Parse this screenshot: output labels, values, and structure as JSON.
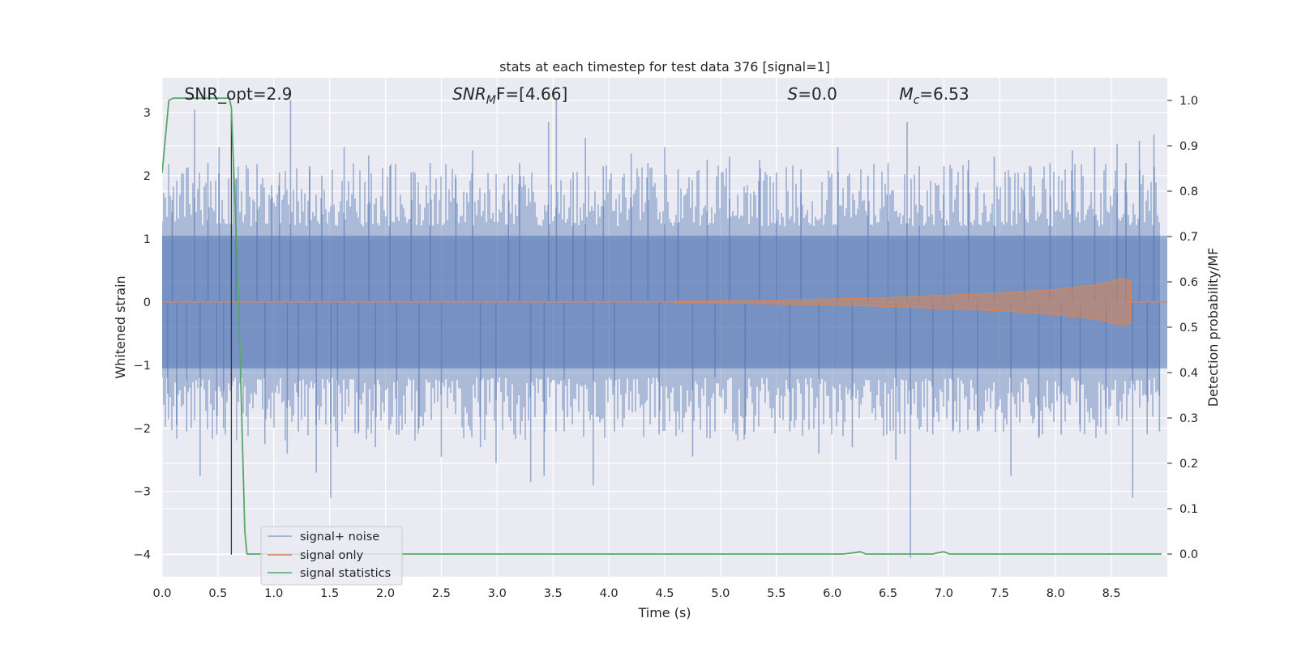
{
  "chart_data": {
    "type": "line",
    "title": "stats at each timestep for test data 376 [signal=1]",
    "xlabel": "Time (s)",
    "ylabel": "Whitened strain",
    "y2label": "Detection probability/MF",
    "xlim": [
      0.0,
      9.0
    ],
    "ylim": [
      -4.35,
      3.55
    ],
    "y2lim": [
      -0.05,
      1.05
    ],
    "xticks": [
      0.0,
      0.5,
      1.0,
      1.5,
      2.0,
      2.5,
      3.0,
      3.5,
      4.0,
      4.5,
      5.0,
      5.5,
      6.0,
      6.5,
      7.0,
      7.5,
      8.0,
      8.5
    ],
    "xtick_labels": [
      "0.0",
      "0.5",
      "1.0",
      "1.5",
      "2.0",
      "2.5",
      "3.0",
      "3.5",
      "4.0",
      "4.5",
      "5.0",
      "5.5",
      "6.0",
      "6.5",
      "7.0",
      "7.5",
      "8.0",
      "8.5"
    ],
    "yticks": [
      3,
      2,
      1,
      0,
      -1,
      -2,
      -3,
      -4
    ],
    "ytick_labels": [
      "3",
      "2",
      "1",
      "0",
      "−1",
      "−2",
      "−3",
      "−4"
    ],
    "y2ticks": [
      1.0,
      0.9,
      0.8,
      0.7,
      0.6,
      0.5,
      0.4,
      0.3,
      0.2,
      0.1,
      0.0
    ],
    "y2tick_labels": [
      "1.0",
      "0.9",
      "0.8",
      "0.7",
      "0.6",
      "0.5",
      "0.4",
      "0.3",
      "0.2",
      "0.1",
      "0.0"
    ],
    "grid": true,
    "legend_position": "lower-left",
    "annotations": {
      "snr_opt": {
        "prefix": "SNR_opt=",
        "value": "2.9",
        "x": 0.2
      },
      "snr_mf": {
        "name": "SNR",
        "sub": "M",
        "suffix": "F=",
        "value": "[4.66]",
        "x": 2.6
      },
      "s": {
        "name": "S",
        "suffix": "=0.0",
        "x": 5.6
      },
      "mc": {
        "name": "M",
        "sub": "c",
        "suffix": "=6.53",
        "x": 6.6
      }
    },
    "marker_line": {
      "x": 0.62,
      "y_from": -4.0,
      "y_to": 3.0
    },
    "series": [
      {
        "name": "signal+ noise",
        "color": "#4c72b0",
        "kind": "noise",
        "core_low": -1.05,
        "core_high": 1.05,
        "spikes": [
          {
            "x": 0.05,
            "y": -1.45
          },
          {
            "x": 0.09,
            "y": 1.62
          },
          {
            "x": 0.13,
            "y": -1.95
          },
          {
            "x": 0.22,
            "y": -2.05
          },
          {
            "x": 0.29,
            "y": 3.05
          },
          {
            "x": 0.34,
            "y": -2.75
          },
          {
            "x": 0.41,
            "y": 2.2
          },
          {
            "x": 0.49,
            "y": -2.1
          },
          {
            "x": 0.51,
            "y": 2.45
          },
          {
            "x": 0.55,
            "y": -2.0
          },
          {
            "x": 0.66,
            "y": 1.95
          },
          {
            "x": 0.85,
            "y": 2.18
          },
          {
            "x": 0.92,
            "y": -2.25
          },
          {
            "x": 0.98,
            "y": 1.85
          },
          {
            "x": 1.05,
            "y": 2.05
          },
          {
            "x": 1.12,
            "y": -2.4
          },
          {
            "x": 1.15,
            "y": 3.2
          },
          {
            "x": 1.22,
            "y": -2.05
          },
          {
            "x": 1.32,
            "y": 2.15
          },
          {
            "x": 1.38,
            "y": -2.7
          },
          {
            "x": 1.43,
            "y": 2.0
          },
          {
            "x": 1.51,
            "y": -3.1
          },
          {
            "x": 1.57,
            "y": -2.3
          },
          {
            "x": 1.63,
            "y": 2.45
          },
          {
            "x": 1.76,
            "y": -2.05
          },
          {
            "x": 1.85,
            "y": 2.32
          },
          {
            "x": 1.91,
            "y": -2.3
          },
          {
            "x": 2.04,
            "y": 2.15
          },
          {
            "x": 2.1,
            "y": -2.1
          },
          {
            "x": 2.23,
            "y": 2.05
          },
          {
            "x": 2.3,
            "y": -2.0
          },
          {
            "x": 2.4,
            "y": 2.2
          },
          {
            "x": 2.5,
            "y": -2.45
          },
          {
            "x": 2.63,
            "y": 1.95
          },
          {
            "x": 2.78,
            "y": 2.4
          },
          {
            "x": 2.85,
            "y": -2.3
          },
          {
            "x": 2.99,
            "y": -2.55
          },
          {
            "x": 3.1,
            "y": 2.0
          },
          {
            "x": 3.2,
            "y": 2.2
          },
          {
            "x": 3.3,
            "y": -2.85
          },
          {
            "x": 3.42,
            "y": -2.75
          },
          {
            "x": 3.46,
            "y": 2.85
          },
          {
            "x": 3.53,
            "y": 3.2
          },
          {
            "x": 3.6,
            "y": -2.05
          },
          {
            "x": 3.68,
            "y": 2.05
          },
          {
            "x": 3.79,
            "y": 2.6
          },
          {
            "x": 3.86,
            "y": -2.9
          },
          {
            "x": 3.95,
            "y": 2.15
          },
          {
            "x": 4.05,
            "y": -2.05
          },
          {
            "x": 4.2,
            "y": 2.35
          },
          {
            "x": 4.35,
            "y": 2.2
          },
          {
            "x": 4.45,
            "y": -2.1
          },
          {
            "x": 4.5,
            "y": 2.45
          },
          {
            "x": 4.62,
            "y": 2.1
          },
          {
            "x": 4.75,
            "y": -2.45
          },
          {
            "x": 4.88,
            "y": 2.25
          },
          {
            "x": 4.95,
            "y": -2.05
          },
          {
            "x": 5.08,
            "y": 2.3
          },
          {
            "x": 5.22,
            "y": -2.1
          },
          {
            "x": 5.35,
            "y": 2.25
          },
          {
            "x": 5.5,
            "y": 2.05
          },
          {
            "x": 5.62,
            "y": -2.05
          },
          {
            "x": 5.72,
            "y": 2.1
          },
          {
            "x": 5.88,
            "y": -2.4
          },
          {
            "x": 6.05,
            "y": 2.45
          },
          {
            "x": 6.18,
            "y": -2.3
          },
          {
            "x": 6.32,
            "y": 2.0
          },
          {
            "x": 6.5,
            "y": 2.2
          },
          {
            "x": 6.57,
            "y": -2.5
          },
          {
            "x": 6.67,
            "y": 2.85
          },
          {
            "x": 6.7,
            "y": -4.05
          },
          {
            "x": 6.78,
            "y": 2.15
          },
          {
            "x": 6.9,
            "y": -2.1
          },
          {
            "x": 7.0,
            "y": 2.15
          },
          {
            "x": 7.08,
            "y": -2.05
          },
          {
            "x": 7.22,
            "y": 2.25
          },
          {
            "x": 7.3,
            "y": -2.05
          },
          {
            "x": 7.45,
            "y": 2.3
          },
          {
            "x": 7.6,
            "y": -2.75
          },
          {
            "x": 7.72,
            "y": 2.05
          },
          {
            "x": 7.85,
            "y": -2.15
          },
          {
            "x": 7.95,
            "y": 2.2
          },
          {
            "x": 8.05,
            "y": -2.1
          },
          {
            "x": 8.15,
            "y": 2.4
          },
          {
            "x": 8.22,
            "y": -2.05
          },
          {
            "x": 8.35,
            "y": 2.45
          },
          {
            "x": 8.45,
            "y": -2.1
          },
          {
            "x": 8.55,
            "y": 2.5
          },
          {
            "x": 8.63,
            "y": 2.2
          },
          {
            "x": 8.69,
            "y": -3.1
          },
          {
            "x": 8.75,
            "y": 2.55
          },
          {
            "x": 8.82,
            "y": -2.1
          },
          {
            "x": 8.88,
            "y": 2.65
          },
          {
            "x": 8.93,
            "y": -2.05
          }
        ]
      },
      {
        "name": "signal only",
        "color": "#dd8452",
        "kind": "chirp",
        "t_start": 4.6,
        "t_end": 8.68,
        "envelope": [
          {
            "x": 4.6,
            "y": 0.01
          },
          {
            "x": 5.5,
            "y": 0.03
          },
          {
            "x": 6.5,
            "y": 0.07
          },
          {
            "x": 7.5,
            "y": 0.14
          },
          {
            "x": 8.0,
            "y": 0.2
          },
          {
            "x": 8.4,
            "y": 0.28
          },
          {
            "x": 8.6,
            "y": 0.38
          },
          {
            "x": 8.67,
            "y": 0.33
          }
        ]
      },
      {
        "name": "signal statistics",
        "color": "#55a868",
        "kind": "line",
        "axis": "right",
        "x": [
          0.0,
          0.06,
          0.1,
          0.6,
          0.62,
          0.68,
          0.74,
          0.76,
          6.1,
          6.2,
          6.25,
          6.3,
          6.9,
          6.95,
          7.0,
          7.05,
          8.95
        ],
        "y": [
          0.84,
          1.0,
          1.005,
          1.005,
          0.985,
          0.6,
          0.05,
          0.0,
          0.0,
          0.003,
          0.005,
          0.0,
          0.0,
          0.003,
          0.005,
          0.0,
          0.0
        ]
      }
    ]
  }
}
